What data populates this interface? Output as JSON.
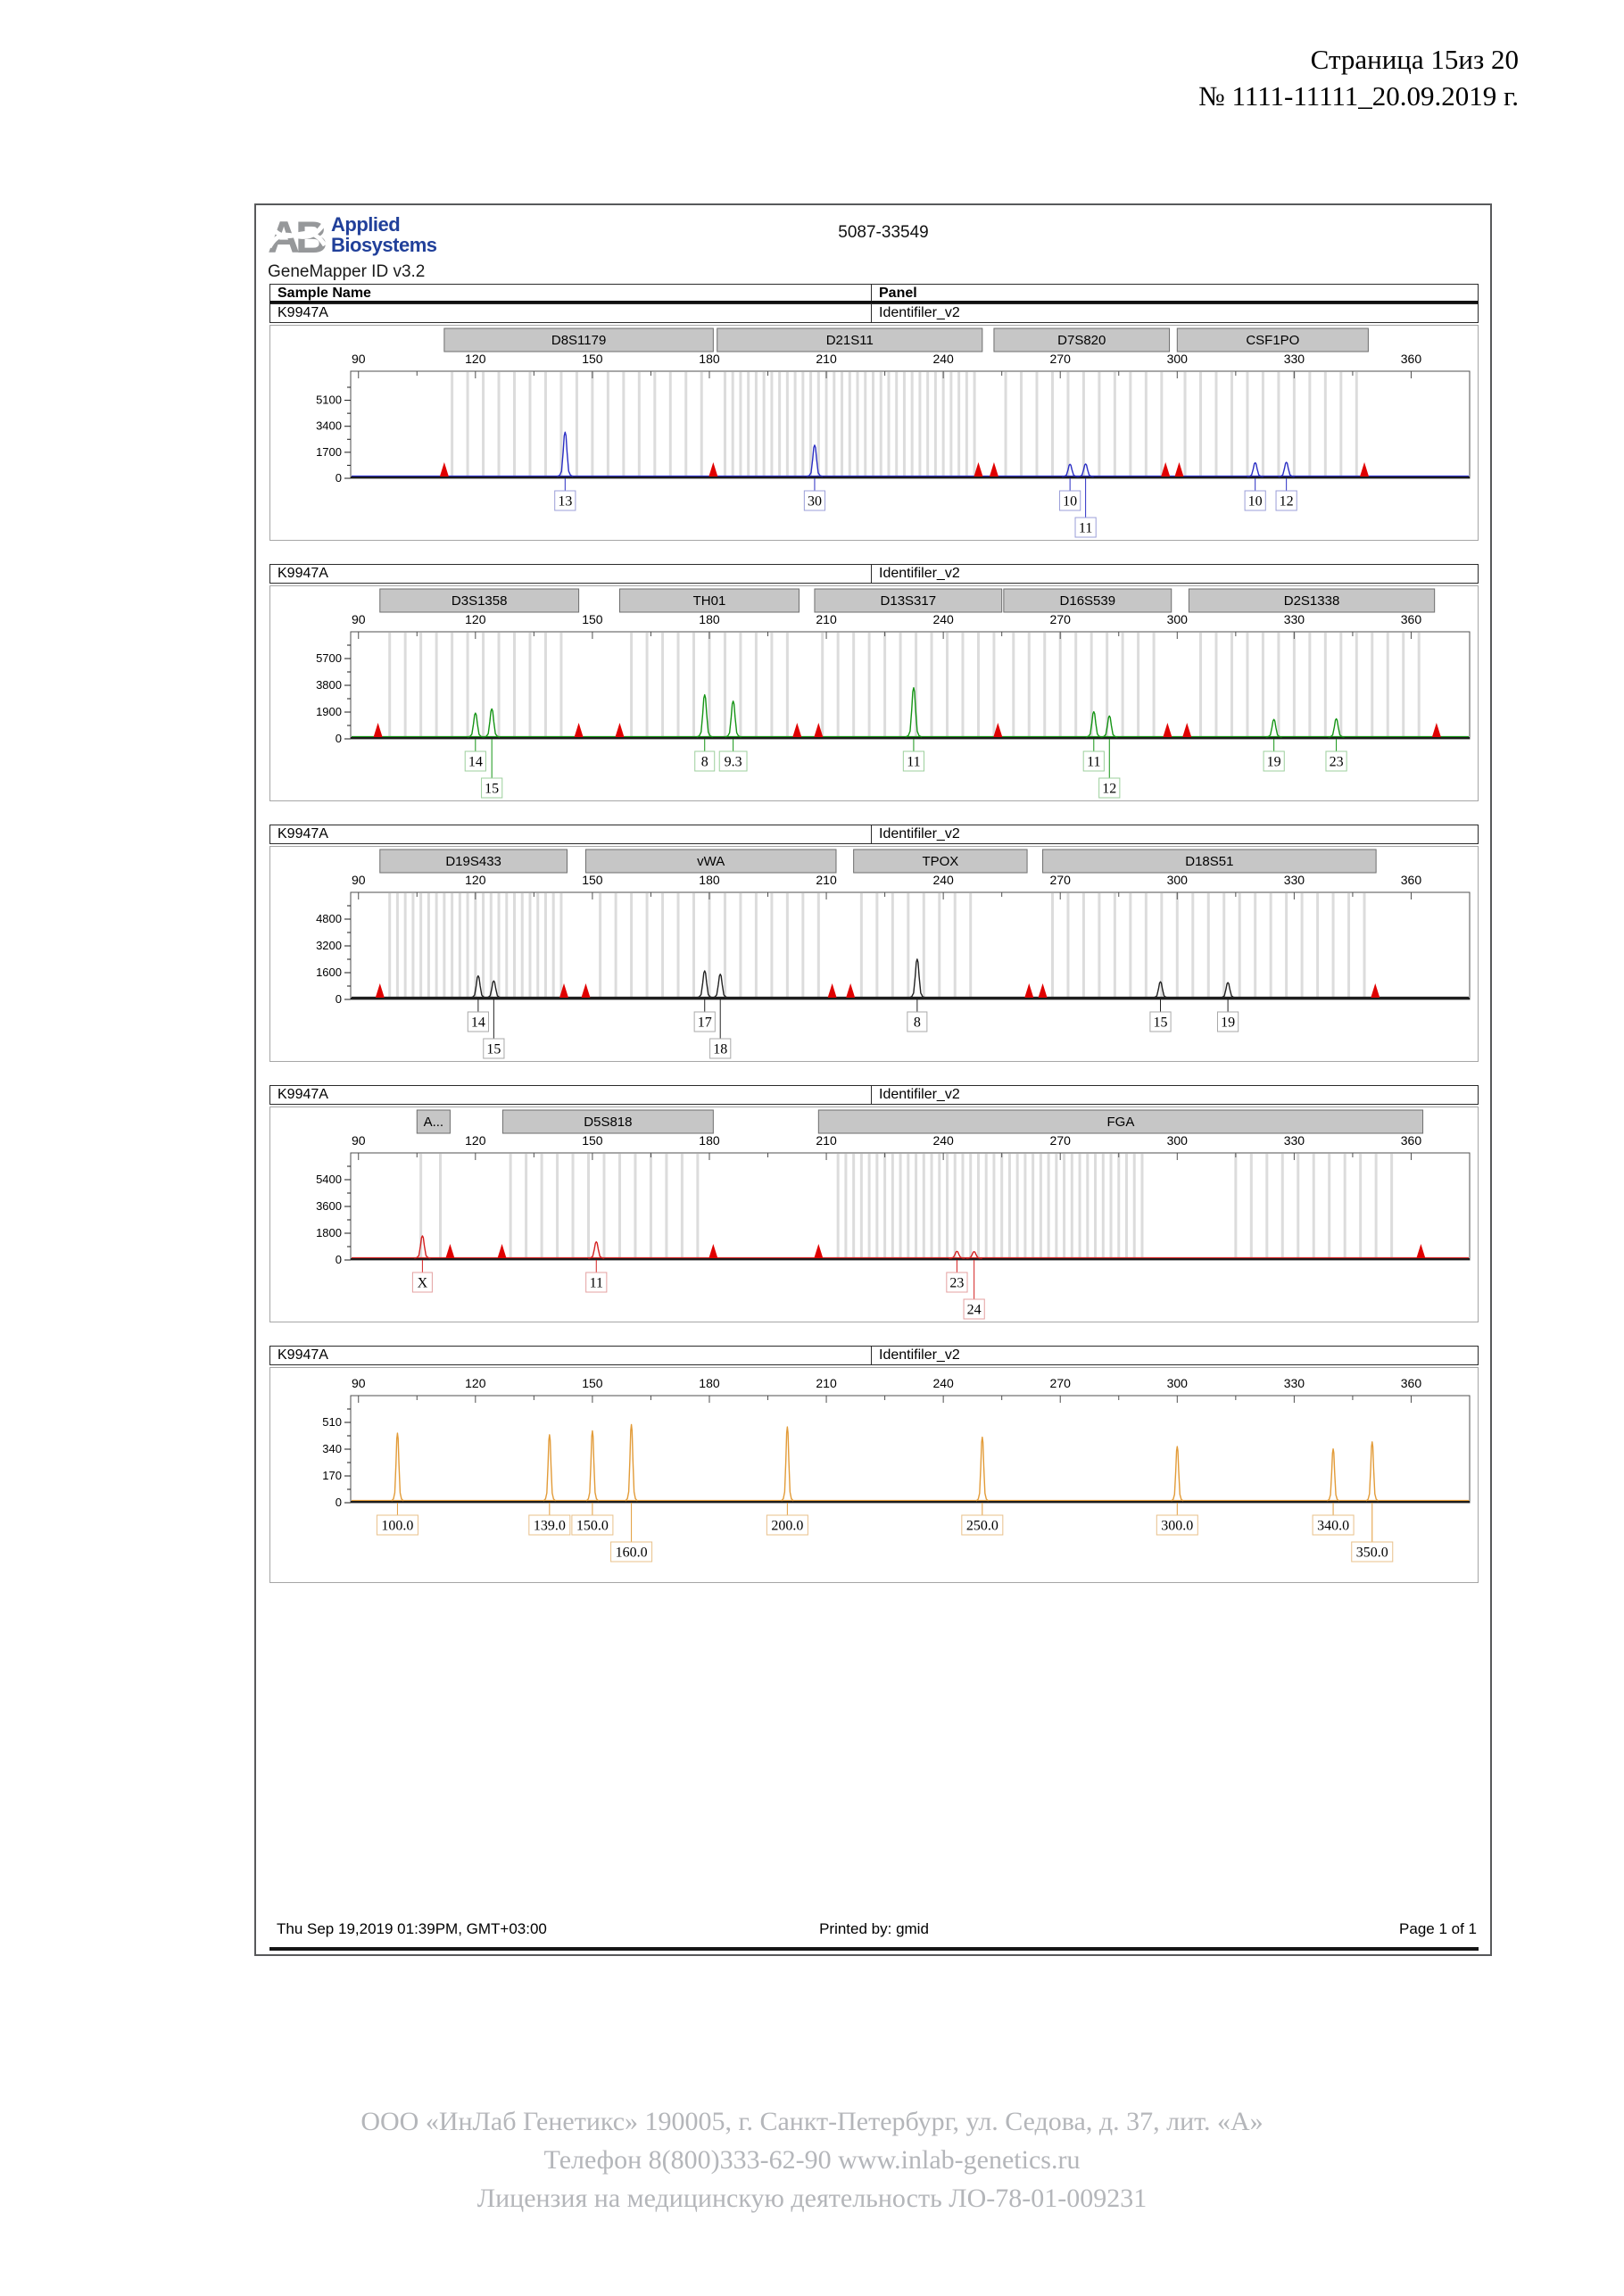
{
  "page": {
    "page_label": "Страница 15из 20",
    "doc_number": "№ 1111-11111_20.09.2019 г."
  },
  "report": {
    "logo_line1": "Applied",
    "logo_line2": "Biosystems",
    "app_version": "GeneMapper ID v3.2",
    "run_id": "5087-33549",
    "columns": [
      "Sample Name",
      "Panel"
    ],
    "footer": {
      "left": "Thu Sep 19,2019 01:39PM, GMT+03:00",
      "center": "Printed by: gmid",
      "right": "Page 1 of 1"
    }
  },
  "company": {
    "line1": "ООО «ИнЛаб Генетикс» 190005, г. Санкт-Петербург, ул. Седова, д. 37, лит. «А»",
    "line2": "Телефон 8(800)333-62-90 www.inlab-genetics.ru",
    "line3": "Лицензия на медицинскую деятельность ЛО-78-01-009231"
  },
  "colors": {
    "logo_blue": "#21409a",
    "logo_gray": "#96989a",
    "marker_box_fill": "#c6c6c6",
    "marker_box_border": "#6e6e6e",
    "bin_bar": "#dcdcdc",
    "plot_border": "#4f4f4f",
    "axis_black": "#1c1c1c",
    "triangle_red": "#e00000",
    "company_gray": "#b4b6ba"
  },
  "chart_data": {
    "type": "electropherogram",
    "xlim": [
      88,
      375
    ],
    "xticks": [
      90,
      120,
      150,
      180,
      210,
      240,
      270,
      300,
      330,
      360
    ],
    "x_unit": "bp",
    "panels": [
      {
        "sample_name": "K9947A",
        "panel_name": "Identifiler_v2",
        "dye_color": "#2a2ec4",
        "label_border": "#9b9fd8",
        "ymax": 7000,
        "yticks": [
          0,
          1700,
          3400,
          5100
        ],
        "markers": [
          {
            "name": "D8S1179",
            "start": 112,
            "end": 181
          },
          {
            "name": "D21S11",
            "start": 182,
            "end": 250
          },
          {
            "name": "D7S820",
            "start": 253,
            "end": 298
          },
          {
            "name": "CSF1PO",
            "start": 300,
            "end": 349
          }
        ],
        "bins": [
          {
            "from": 114,
            "to": 178,
            "step": 4
          },
          {
            "from": 184,
            "to": 248,
            "step": 2
          },
          {
            "from": 256,
            "to": 296,
            "step": 4
          },
          {
            "from": 302,
            "to": 346,
            "step": 4
          }
        ],
        "peaks": [
          {
            "bp": 143,
            "rfu": 2900,
            "label": "13",
            "row": 0
          },
          {
            "bp": 207,
            "rfu": 2050,
            "label": "30",
            "row": 0
          },
          {
            "bp": 272.5,
            "rfu": 800,
            "label": "10",
            "row": 0
          },
          {
            "bp": 276.5,
            "rfu": 820,
            "label": "11",
            "row": 1
          },
          {
            "bp": 320,
            "rfu": 900,
            "label": "10",
            "row": 0
          },
          {
            "bp": 328,
            "rfu": 930,
            "label": "12",
            "row": 0
          }
        ],
        "triangles": [
          112,
          181,
          249,
          253,
          297,
          300.5,
          348
        ]
      },
      {
        "sample_name": "K9947A",
        "panel_name": "Identifiler_v2",
        "dye_color": "#149414",
        "label_border": "#9ccf9c",
        "ymax": 7600,
        "yticks": [
          0,
          1900,
          3800,
          5700
        ],
        "markers": [
          {
            "name": "D3S1358",
            "start": 95.5,
            "end": 146.5
          },
          {
            "name": "TH01",
            "start": 157,
            "end": 203
          },
          {
            "name": "D13S317",
            "start": 207,
            "end": 255
          },
          {
            "name": "D16S539",
            "start": 255.5,
            "end": 298.5
          },
          {
            "name": "D2S1338",
            "start": 303,
            "end": 366
          }
        ],
        "bins": [
          {
            "from": 98,
            "to": 144,
            "step": 4
          },
          {
            "from": 160,
            "to": 200,
            "step": 4
          },
          {
            "from": 209,
            "to": 253,
            "step": 4
          },
          {
            "from": 258,
            "to": 296,
            "step": 4
          },
          {
            "from": 306,
            "to": 364,
            "step": 4
          }
        ],
        "peaks": [
          {
            "bp": 120,
            "rfu": 1700,
            "label": "14",
            "row": 0
          },
          {
            "bp": 124.2,
            "rfu": 2000,
            "label": "15",
            "row": 1
          },
          {
            "bp": 178.8,
            "rfu": 3000,
            "label": "8",
            "row": 0
          },
          {
            "bp": 186.1,
            "rfu": 2550,
            "label": "9.3",
            "row": 0
          },
          {
            "bp": 232.4,
            "rfu": 3500,
            "label": "11",
            "row": 0
          },
          {
            "bp": 278.6,
            "rfu": 1800,
            "label": "11",
            "row": 0
          },
          {
            "bp": 282.6,
            "rfu": 1500,
            "label": "12",
            "row": 1
          },
          {
            "bp": 324.8,
            "rfu": 1250,
            "label": "19",
            "row": 0
          },
          {
            "bp": 340.8,
            "rfu": 1300,
            "label": "23",
            "row": 0
          }
        ],
        "triangles": [
          95,
          146.5,
          157,
          202.5,
          208,
          254,
          297.5,
          302.5,
          366.5
        ]
      },
      {
        "sample_name": "K9947A",
        "panel_name": "Identifiler_v2",
        "dye_color": "#222222",
        "label_border": "#aaaaaa",
        "ymax": 6400,
        "yticks": [
          0,
          1600,
          3200,
          4800
        ],
        "markers": [
          {
            "name": "D19S433",
            "start": 95.5,
            "end": 143.5
          },
          {
            "name": "vWA",
            "start": 148.3,
            "end": 212.5
          },
          {
            "name": "TPOX",
            "start": 217,
            "end": 261.5
          },
          {
            "name": "D18S51",
            "start": 265.5,
            "end": 351
          }
        ],
        "bins": [
          {
            "from": 98,
            "to": 142,
            "step": 2
          },
          {
            "from": 152,
            "to": 210,
            "step": 4
          },
          {
            "from": 219,
            "to": 249,
            "step": 4
          },
          {
            "from": 268,
            "to": 350,
            "step": 4
          }
        ],
        "peaks": [
          {
            "bp": 120.7,
            "rfu": 1300,
            "label": "14",
            "row": 0
          },
          {
            "bp": 124.7,
            "rfu": 1000,
            "label": "15",
            "row": 1
          },
          {
            "bp": 178.8,
            "rfu": 1600,
            "label": "17",
            "row": 0
          },
          {
            "bp": 182.8,
            "rfu": 1400,
            "label": "18",
            "row": 1
          },
          {
            "bp": 233.3,
            "rfu": 2300,
            "label": "8",
            "row": 0
          },
          {
            "bp": 295.7,
            "rfu": 950,
            "label": "15",
            "row": 0
          },
          {
            "bp": 313,
            "rfu": 900,
            "label": "19",
            "row": 0
          }
        ],
        "triangles": [
          95.5,
          142.7,
          148.3,
          211.5,
          216.2,
          262,
          265.5,
          350.8
        ]
      },
      {
        "sample_name": "K9947A",
        "panel_name": "Identifiler_v2",
        "dye_color": "#d42020",
        "label_border": "#e4a0a0",
        "ymax": 7200,
        "yticks": [
          0,
          1800,
          3600,
          5400
        ],
        "markers": [
          {
            "name": "A...",
            "start": 105,
            "end": 113.5
          },
          {
            "name": "D5S818",
            "start": 127,
            "end": 181
          },
          {
            "name": "FGA",
            "start": 208,
            "end": 363
          }
        ],
        "bins": [
          {
            "from": 106,
            "to": 112,
            "step": 5
          },
          {
            "from": 129,
            "to": 179,
            "step": 4
          },
          {
            "from": 213,
            "to": 291,
            "step": 2
          },
          {
            "from": 315,
            "to": 355,
            "step": 4
          }
        ],
        "peaks": [
          {
            "bp": 106.4,
            "rfu": 1500,
            "label": "X",
            "row": 0
          },
          {
            "bp": 151,
            "rfu": 1100,
            "label": "11",
            "row": 0
          },
          {
            "bp": 243.5,
            "rfu": 460,
            "label": "23",
            "row": 0
          },
          {
            "bp": 247.9,
            "rfu": 440,
            "label": "24",
            "row": 1
          }
        ],
        "triangles": [
          113.5,
          126.8,
          181,
          208,
          362.5
        ]
      },
      {
        "sample_name": "K9947A",
        "panel_name": "Identifiler_v2",
        "dye_color": "#e29b38",
        "label_border": "#e8c08a",
        "ymax": 680,
        "yticks": [
          0,
          170,
          340,
          510
        ],
        "markers": [],
        "bins": [],
        "peaks": [
          {
            "bp": 100,
            "rfu": 430,
            "label": "100.0",
            "row": 0
          },
          {
            "bp": 139,
            "rfu": 420,
            "label": "139.0",
            "row": 0
          },
          {
            "bp": 150,
            "rfu": 445,
            "label": "150.0",
            "row": 0
          },
          {
            "bp": 160,
            "rfu": 485,
            "label": "160.0",
            "row": 1
          },
          {
            "bp": 200,
            "rfu": 470,
            "label": "200.0",
            "row": 0
          },
          {
            "bp": 250,
            "rfu": 405,
            "label": "250.0",
            "row": 0
          },
          {
            "bp": 300,
            "rfu": 345,
            "label": "300.0",
            "row": 0
          },
          {
            "bp": 340,
            "rfu": 330,
            "label": "340.0",
            "row": 0
          },
          {
            "bp": 350,
            "rfu": 375,
            "label": "350.0",
            "row": 1
          }
        ],
        "triangles": []
      }
    ]
  }
}
